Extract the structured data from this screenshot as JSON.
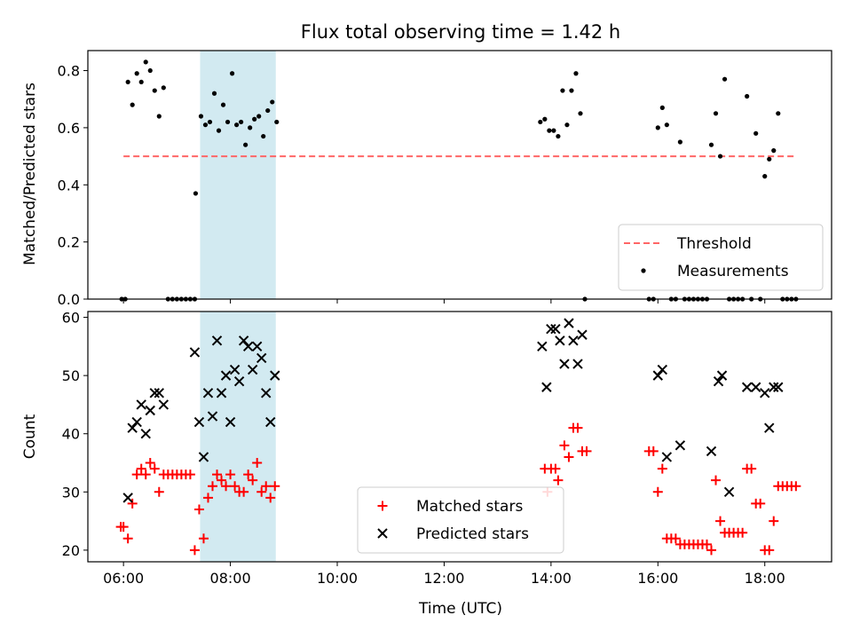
{
  "chart_data": {
    "title": "Flux total observing time = 1.42 h",
    "xlabel": "Time (UTC)",
    "x_unit": "hours UTC",
    "xlim": [
      "05:20",
      "19:15"
    ],
    "xticks": [
      "06:00",
      "08:00",
      "10:00",
      "12:00",
      "14:00",
      "16:00",
      "18:00"
    ],
    "highlight_span": {
      "start": "07:26",
      "end": "08:51",
      "color": "#add8e6"
    },
    "panels": [
      {
        "type": "scatter",
        "ylabel": "Matched/Predicted stars",
        "ylim": [
          0,
          0.87
        ],
        "yticks": [
          "0.0",
          "0.2",
          "0.4",
          "0.6",
          "0.8"
        ],
        "legend_position": "lower right",
        "threshold": {
          "name": "Threshold",
          "value": 0.5,
          "x_start": "06:00",
          "x_end": "18:35",
          "color": "#ff6666"
        },
        "series": [
          {
            "name": "Measurements",
            "marker": "dot",
            "color": "#000000",
            "points": [
              [
                "05:58",
                0
              ],
              [
                "06:02",
                0
              ],
              [
                "06:05",
                0.76
              ],
              [
                "06:10",
                0.68
              ],
              [
                "06:15",
                0.79
              ],
              [
                "06:20",
                0.76
              ],
              [
                "06:25",
                0.83
              ],
              [
                "06:30",
                0.8
              ],
              [
                "06:35",
                0.73
              ],
              [
                "06:40",
                0.64
              ],
              [
                "06:45",
                0.74
              ],
              [
                "06:50",
                0
              ],
              [
                "06:55",
                0
              ],
              [
                "07:00",
                0
              ],
              [
                "07:05",
                0
              ],
              [
                "07:10",
                0
              ],
              [
                "07:15",
                0
              ],
              [
                "07:20",
                0
              ],
              [
                "07:21",
                0.37
              ],
              [
                "07:27",
                0.64
              ],
              [
                "07:32",
                0.61
              ],
              [
                "07:37",
                0.62
              ],
              [
                "07:42",
                0.72
              ],
              [
                "07:47",
                0.59
              ],
              [
                "07:52",
                0.68
              ],
              [
                "07:57",
                0.62
              ],
              [
                "08:02",
                0.79
              ],
              [
                "08:07",
                0.61
              ],
              [
                "08:12",
                0.62
              ],
              [
                "08:17",
                0.54
              ],
              [
                "08:22",
                0.6
              ],
              [
                "08:27",
                0.63
              ],
              [
                "08:32",
                0.64
              ],
              [
                "08:37",
                0.57
              ],
              [
                "08:42",
                0.66
              ],
              [
                "08:47",
                0.69
              ],
              [
                "08:52",
                0.62
              ],
              [
                "13:48",
                0.62
              ],
              [
                "13:53",
                0.63
              ],
              [
                "13:58",
                0.59
              ],
              [
                "14:03",
                0.59
              ],
              [
                "14:08",
                0.57
              ],
              [
                "14:13",
                0.73
              ],
              [
                "14:18",
                0.61
              ],
              [
                "14:23",
                0.73
              ],
              [
                "14:28",
                0.79
              ],
              [
                "14:33",
                0.65
              ],
              [
                "14:38",
                0
              ],
              [
                "15:50",
                0
              ],
              [
                "15:55",
                0
              ],
              [
                "16:00",
                0.6
              ],
              [
                "16:05",
                0.67
              ],
              [
                "16:10",
                0.61
              ],
              [
                "16:15",
                0
              ],
              [
                "16:20",
                0
              ],
              [
                "16:25",
                0.55
              ],
              [
                "16:30",
                0
              ],
              [
                "16:35",
                0
              ],
              [
                "16:40",
                0
              ],
              [
                "16:45",
                0
              ],
              [
                "16:50",
                0
              ],
              [
                "16:55",
                0
              ],
              [
                "17:00",
                0.54
              ],
              [
                "17:05",
                0.65
              ],
              [
                "17:10",
                0.5
              ],
              [
                "17:15",
                0.77
              ],
              [
                "17:20",
                0
              ],
              [
                "17:25",
                0
              ],
              [
                "17:30",
                0
              ],
              [
                "17:35",
                0
              ],
              [
                "17:40",
                0.71
              ],
              [
                "17:45",
                0
              ],
              [
                "17:50",
                0.58
              ],
              [
                "17:55",
                0
              ],
              [
                "18:00",
                0.43
              ],
              [
                "18:05",
                0.49
              ],
              [
                "18:10",
                0.52
              ],
              [
                "18:15",
                0.65
              ],
              [
                "18:20",
                0
              ],
              [
                "18:25",
                0
              ],
              [
                "18:30",
                0
              ],
              [
                "18:35",
                0
              ]
            ]
          }
        ]
      },
      {
        "type": "scatter",
        "ylabel": "Count",
        "ylim": [
          18,
          61
        ],
        "yticks": [
          "20",
          "30",
          "40",
          "50",
          "60"
        ],
        "legend_position": "lower center",
        "series": [
          {
            "name": "Matched stars",
            "marker": "plus",
            "color": "#ff0000",
            "points": [
              [
                "05:57",
                24
              ],
              [
                "06:00",
                24
              ],
              [
                "06:05",
                22
              ],
              [
                "06:10",
                28
              ],
              [
                "06:15",
                33
              ],
              [
                "06:20",
                34
              ],
              [
                "06:25",
                33
              ],
              [
                "06:30",
                35
              ],
              [
                "06:35",
                34
              ],
              [
                "06:40",
                30
              ],
              [
                "06:45",
                33
              ],
              [
                "06:50",
                33
              ],
              [
                "06:55",
                33
              ],
              [
                "07:00",
                33
              ],
              [
                "07:05",
                33
              ],
              [
                "07:10",
                33
              ],
              [
                "07:15",
                33
              ],
              [
                "07:20",
                20
              ],
              [
                "07:25",
                27
              ],
              [
                "07:30",
                22
              ],
              [
                "07:35",
                29
              ],
              [
                "07:40",
                31
              ],
              [
                "07:45",
                33
              ],
              [
                "07:50",
                32
              ],
              [
                "07:55",
                31
              ],
              [
                "08:00",
                33
              ],
              [
                "08:05",
                31
              ],
              [
                "08:10",
                30
              ],
              [
                "08:15",
                30
              ],
              [
                "08:20",
                33
              ],
              [
                "08:25",
                32
              ],
              [
                "08:30",
                35
              ],
              [
                "08:35",
                30
              ],
              [
                "08:40",
                31
              ],
              [
                "08:45",
                29
              ],
              [
                "08:50",
                31
              ],
              [
                "13:53",
                34
              ],
              [
                "13:56",
                30
              ],
              [
                "14:00",
                34
              ],
              [
                "14:05",
                34
              ],
              [
                "14:08",
                32
              ],
              [
                "14:15",
                38
              ],
              [
                "14:20",
                36
              ],
              [
                "14:25",
                41
              ],
              [
                "14:30",
                41
              ],
              [
                "14:35",
                37
              ],
              [
                "14:40",
                37
              ],
              [
                "15:50",
                37
              ],
              [
                "15:55",
                37
              ],
              [
                "16:00",
                30
              ],
              [
                "16:05",
                34
              ],
              [
                "16:10",
                22
              ],
              [
                "16:15",
                22
              ],
              [
                "16:20",
                22
              ],
              [
                "16:25",
                21
              ],
              [
                "16:30",
                21
              ],
              [
                "16:35",
                21
              ],
              [
                "16:40",
                21
              ],
              [
                "16:45",
                21
              ],
              [
                "16:50",
                21
              ],
              [
                "16:55",
                21
              ],
              [
                "17:00",
                20
              ],
              [
                "17:05",
                32
              ],
              [
                "17:10",
                25
              ],
              [
                "17:15",
                23
              ],
              [
                "17:20",
                23
              ],
              [
                "17:25",
                23
              ],
              [
                "17:30",
                23
              ],
              [
                "17:35",
                23
              ],
              [
                "17:40",
                34
              ],
              [
                "17:45",
                34
              ],
              [
                "17:50",
                28
              ],
              [
                "17:55",
                28
              ],
              [
                "18:00",
                20
              ],
              [
                "18:05",
                20
              ],
              [
                "18:10",
                25
              ],
              [
                "18:15",
                31
              ],
              [
                "18:20",
                31
              ],
              [
                "18:25",
                31
              ],
              [
                "18:30",
                31
              ],
              [
                "18:35",
                31
              ]
            ]
          },
          {
            "name": "Predicted stars",
            "marker": "x",
            "color": "#000000",
            "points": [
              [
                "06:05",
                29
              ],
              [
                "06:10",
                41
              ],
              [
                "06:15",
                42
              ],
              [
                "06:20",
                45
              ],
              [
                "06:25",
                40
              ],
              [
                "06:30",
                44
              ],
              [
                "06:35",
                47
              ],
              [
                "06:40",
                47
              ],
              [
                "06:45",
                45
              ],
              [
                "07:20",
                54
              ],
              [
                "07:25",
                42
              ],
              [
                "07:30",
                36
              ],
              [
                "07:35",
                47
              ],
              [
                "07:40",
                43
              ],
              [
                "07:45",
                56
              ],
              [
                "07:50",
                47
              ],
              [
                "07:55",
                50
              ],
              [
                "08:00",
                42
              ],
              [
                "08:05",
                51
              ],
              [
                "08:10",
                49
              ],
              [
                "08:15",
                56
              ],
              [
                "08:20",
                55
              ],
              [
                "08:25",
                51
              ],
              [
                "08:30",
                55
              ],
              [
                "08:35",
                53
              ],
              [
                "08:40",
                47
              ],
              [
                "08:45",
                42
              ],
              [
                "08:50",
                50
              ],
              [
                "13:50",
                55
              ],
              [
                "13:55",
                48
              ],
              [
                "14:00",
                58
              ],
              [
                "14:05",
                58
              ],
              [
                "14:10",
                56
              ],
              [
                "14:15",
                52
              ],
              [
                "14:20",
                59
              ],
              [
                "14:25",
                56
              ],
              [
                "14:30",
                52
              ],
              [
                "14:35",
                57
              ],
              [
                "16:00",
                50
              ],
              [
                "16:05",
                51
              ],
              [
                "16:10",
                36
              ],
              [
                "16:25",
                38
              ],
              [
                "17:00",
                37
              ],
              [
                "17:08",
                49
              ],
              [
                "17:12",
                50
              ],
              [
                "17:20",
                30
              ],
              [
                "17:40",
                48
              ],
              [
                "17:50",
                48
              ],
              [
                "18:00",
                47
              ],
              [
                "18:05",
                41
              ],
              [
                "18:10",
                48
              ],
              [
                "18:15",
                48
              ]
            ]
          }
        ]
      }
    ]
  }
}
